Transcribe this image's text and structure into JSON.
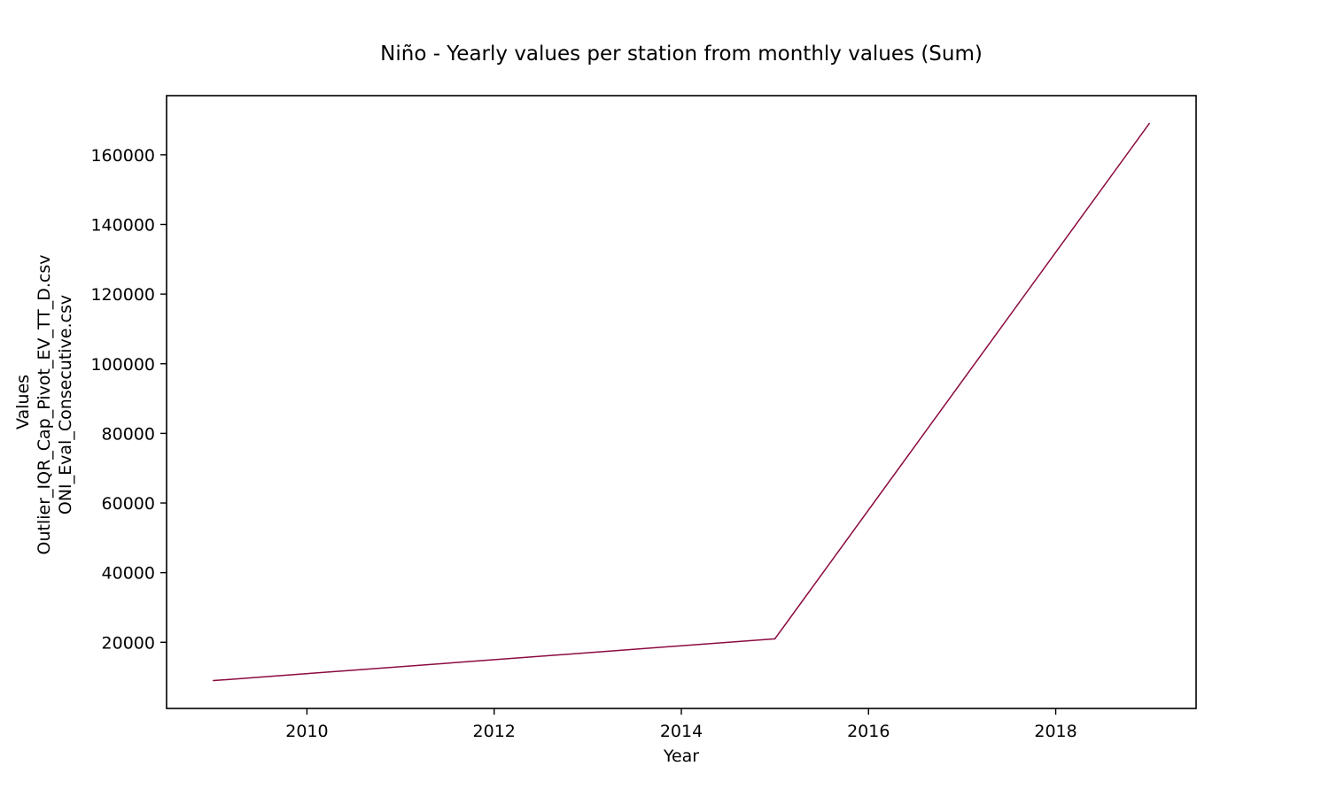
{
  "chart_data": {
    "type": "line",
    "title": "Niño - Yearly values per station from monthly values (Sum)",
    "xlabel": "Year",
    "ylabel_lines": [
      "Values",
      "Outlier_IQR_Cap_Pivot_EV_TT_D.csv",
      "ONI_Eval_Consecutive.csv"
    ],
    "xlim": [
      2008.5,
      2019.5
    ],
    "ylim": [
      1000,
      177000
    ],
    "xticks": [
      2010,
      2012,
      2014,
      2016,
      2018
    ],
    "yticks": [
      20000,
      40000,
      60000,
      80000,
      100000,
      120000,
      140000,
      160000
    ],
    "grid": false,
    "series": [
      {
        "color": "#8b0a3f",
        "x": [
          2009,
          2015,
          2019
        ],
        "y": [
          9000,
          21000,
          169000
        ]
      }
    ]
  }
}
